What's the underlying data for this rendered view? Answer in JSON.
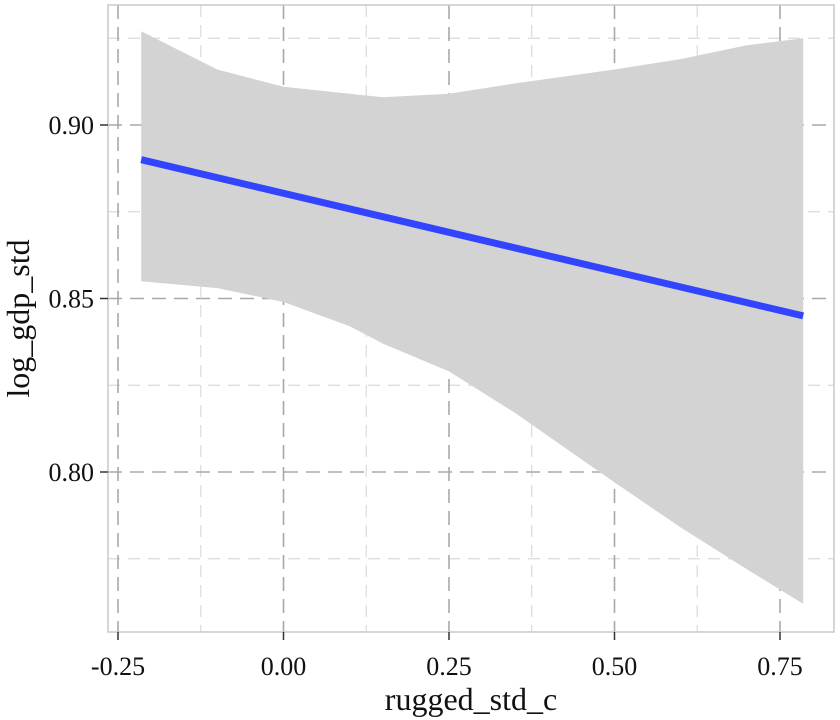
{
  "chart_data": {
    "type": "line",
    "title": "",
    "xlabel": "rugged_std_c",
    "ylabel": "log_gdp_std",
    "xlim": [
      -0.25,
      0.8
    ],
    "ylim": [
      0.757,
      0.932
    ],
    "x_ticks": [
      -0.25,
      0.0,
      0.25,
      0.5,
      0.75
    ],
    "x_tick_labels": [
      "-0.25",
      "0.00",
      "0.25",
      "0.50",
      "0.75"
    ],
    "y_ticks": [
      0.8,
      0.85,
      0.9
    ],
    "y_tick_labels": [
      "0.80",
      "0.85",
      "0.90"
    ],
    "grid": true,
    "series": [
      {
        "color": "#3344ff",
        "x": [
          -0.215,
          0.785
        ],
        "y": [
          0.89,
          0.845
        ]
      }
    ],
    "ribbon": {
      "color": "#d3d3d3",
      "x": [
        -0.215,
        -0.1,
        0.0,
        0.1,
        0.15,
        0.25,
        0.35,
        0.5,
        0.6,
        0.7,
        0.785
      ],
      "upper": [
        0.927,
        0.916,
        0.911,
        0.909,
        0.908,
        0.909,
        0.912,
        0.916,
        0.919,
        0.923,
        0.925
      ],
      "lower": [
        0.855,
        0.853,
        0.849,
        0.842,
        0.837,
        0.829,
        0.817,
        0.797,
        0.784,
        0.772,
        0.762
      ]
    }
  }
}
